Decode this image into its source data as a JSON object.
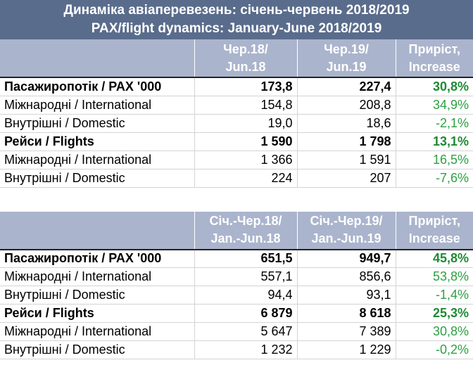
{
  "title": {
    "line1": "Динаміка авіаперевезень: січень-червень 2018/2019",
    "line2": "PAX/flight dynamics: January-June 2018/2019"
  },
  "table1": {
    "headers": [
      [
        "Чер.18/",
        "Jun.18"
      ],
      [
        "Чер.19/",
        "Jun.19"
      ],
      [
        "Приріст,",
        "Increase"
      ]
    ],
    "rows": [
      {
        "label": "Пасажиропотік / PAX '000",
        "v1": "173,8",
        "v2": "227,4",
        "inc": "30,8%",
        "bold": true
      },
      {
        "label": "Міжнародні / International",
        "v1": "154,8",
        "v2": "208,8",
        "inc": "34,9%",
        "bold": false
      },
      {
        "label": "Внутрішні / Domestic",
        "v1": "19,0",
        "v2": "18,6",
        "inc": "-2,1%",
        "bold": false
      },
      {
        "label": "Рейси / Flights",
        "v1": "1 590",
        "v2": "1 798",
        "inc": "13,1%",
        "bold": true
      },
      {
        "label": "Міжнародні / International",
        "v1": "1 366",
        "v2": "1 591",
        "inc": "16,5%",
        "bold": false
      },
      {
        "label": "Внутрішні / Domestic",
        "v1": "224",
        "v2": "207",
        "inc": "-7,6%",
        "bold": false
      }
    ]
  },
  "table2": {
    "headers": [
      [
        "Січ.-Чер.18/",
        "Jan.-Jun.18"
      ],
      [
        "Січ.-Чер.19/",
        "Jan.-Jun.19"
      ],
      [
        "Приріст,",
        "Increase"
      ]
    ],
    "rows": [
      {
        "label": "Пасажиропотік / PAX '000",
        "v1": "651,5",
        "v2": "949,7",
        "inc": "45,8%",
        "bold": true
      },
      {
        "label": "Міжнародні / International",
        "v1": "557,1",
        "v2": "856,6",
        "inc": "53,8%",
        "bold": false
      },
      {
        "label": "Внутрішні / Domestic",
        "v1": "94,4",
        "v2": "93,1",
        "inc": "-1,4%",
        "bold": false
      },
      {
        "label": "Рейси / Flights",
        "v1": "6 879",
        "v2": "8 618",
        "inc": "25,3%",
        "bold": true
      },
      {
        "label": "Міжнародні / International",
        "v1": "5 647",
        "v2": "7 389",
        "inc": "30,8%",
        "bold": false
      },
      {
        "label": "Внутрішні / Domestic",
        "v1": "1 232",
        "v2": "1 229",
        "inc": "-0,2%",
        "bold": false
      }
    ]
  },
  "colors": {
    "title_bg": "#5a6c8c",
    "header_bg": "#aab4cc",
    "increase_green": "#2ea043"
  }
}
